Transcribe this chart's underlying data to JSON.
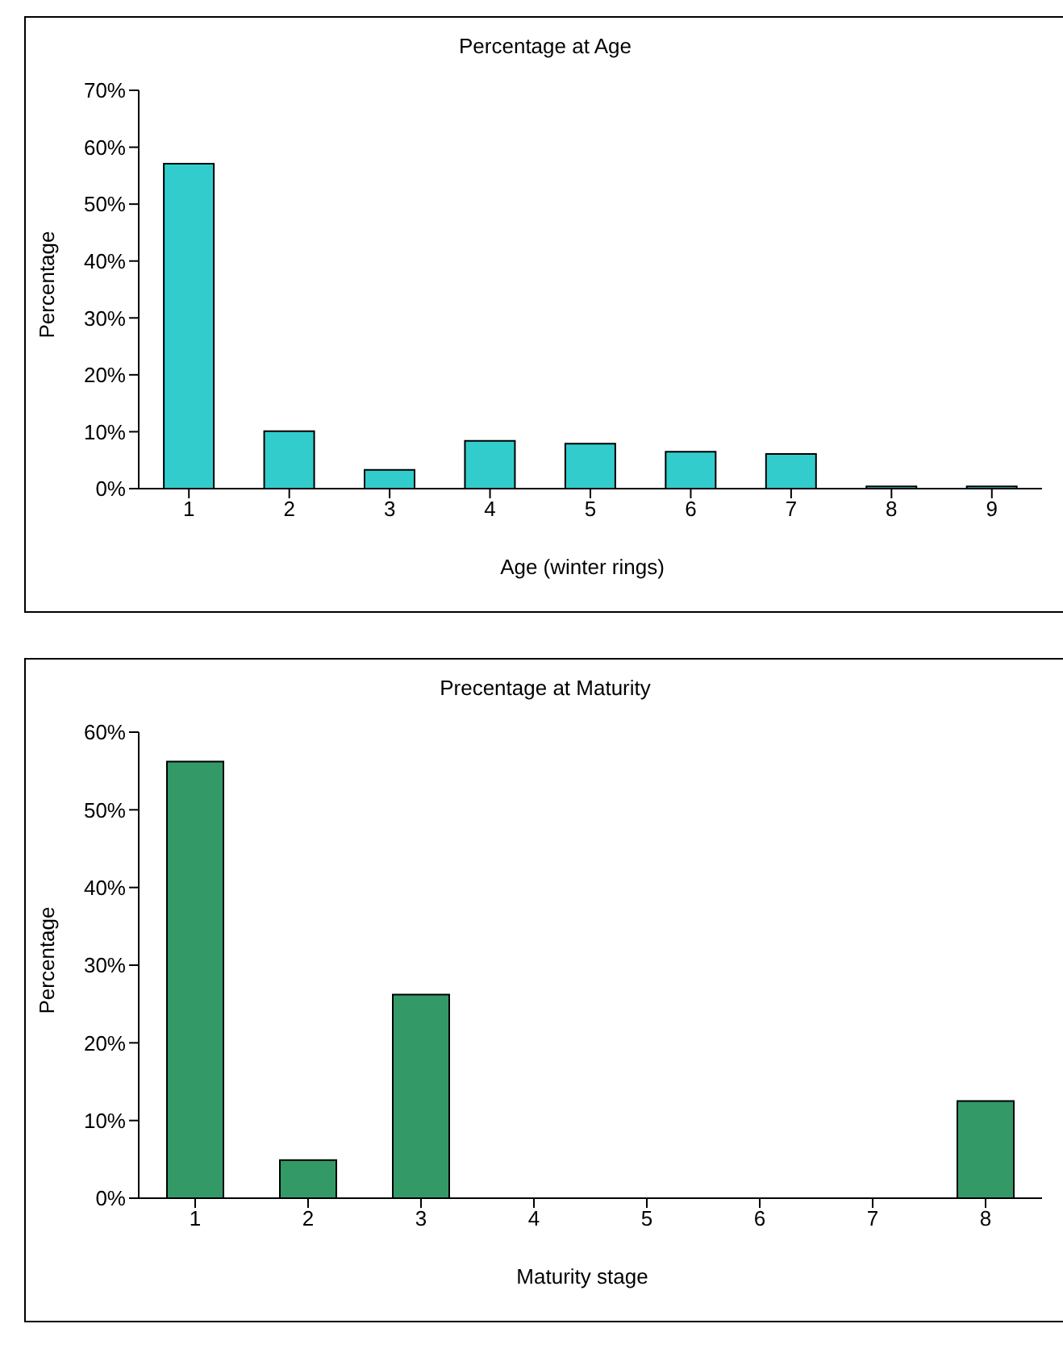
{
  "chart_data": [
    {
      "type": "bar",
      "title": "Percentage at Age",
      "xlabel": "Age (winter rings)",
      "ylabel": "Percentage",
      "categories": [
        "1",
        "2",
        "3",
        "4",
        "5",
        "6",
        "7",
        "8",
        "9"
      ],
      "color": "#33cccc",
      "values": [
        57.1,
        10.1,
        3.3,
        8.4,
        7.9,
        6.5,
        6.1,
        0.4,
        0.4
      ],
      "ylim": [
        0,
        70
      ],
      "yticks": [
        {
          "value": 0,
          "label": "0%"
        },
        {
          "value": 10,
          "label": "10%"
        },
        {
          "value": 20,
          "label": "20%"
        },
        {
          "value": 30,
          "label": "30%"
        },
        {
          "value": 40,
          "label": "40%"
        },
        {
          "value": 50,
          "label": "50%"
        },
        {
          "value": 60,
          "label": "60%"
        },
        {
          "value": 70,
          "label": "70%"
        }
      ],
      "grid": false,
      "legend": false
    },
    {
      "type": "bar",
      "title": "Precentage at Maturity",
      "xlabel": "Maturity stage",
      "ylabel": "Percentage",
      "categories": [
        "1",
        "2",
        "3",
        "4",
        "5",
        "6",
        "7",
        "8"
      ],
      "color": "#339966",
      "values": [
        56.2,
        4.9,
        26.2,
        0,
        0,
        0,
        0,
        12.5
      ],
      "ylim": [
        0,
        60
      ],
      "yticks": [
        {
          "value": 0,
          "label": "0%"
        },
        {
          "value": 10,
          "label": "10%"
        },
        {
          "value": 20,
          "label": "20%"
        },
        {
          "value": 30,
          "label": "30%"
        },
        {
          "value": 40,
          "label": "40%"
        },
        {
          "value": 50,
          "label": "50%"
        },
        {
          "value": 60,
          "label": "60%"
        }
      ],
      "grid": false,
      "legend": false
    }
  ]
}
